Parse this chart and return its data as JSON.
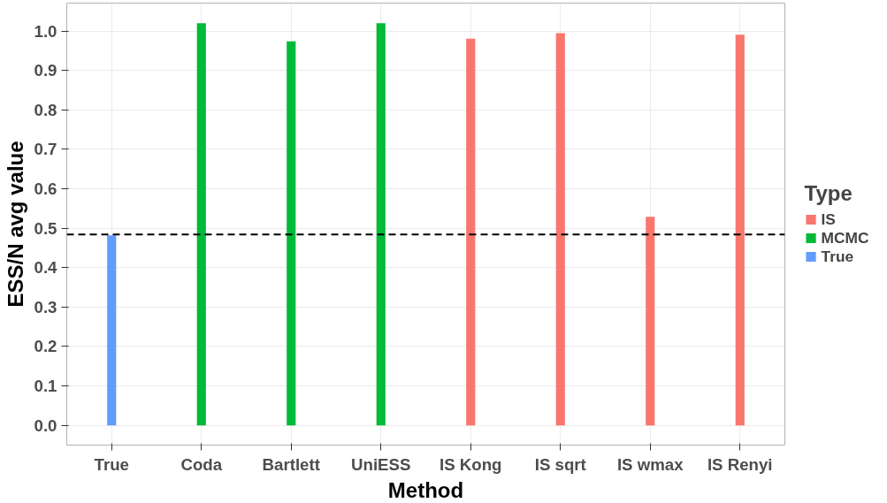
{
  "chart_data": {
    "type": "bar",
    "xlabel": "Method",
    "ylabel": "ESS/N avg value",
    "legend_title": "Type",
    "categories": [
      "True",
      "Coda",
      "Bartlett",
      "UniESS",
      "IS Kong",
      "IS sqrt",
      "IS wmax",
      "IS Renyi"
    ],
    "series": [
      {
        "name": "IS",
        "color": "#f8766d",
        "values": [
          null,
          null,
          null,
          null,
          0.981,
          0.995,
          0.529,
          0.991
        ]
      },
      {
        "name": "MCMC",
        "color": "#00ba38",
        "values": [
          null,
          1.02,
          0.974,
          1.02,
          null,
          null,
          null,
          null
        ]
      },
      {
        "name": "True",
        "color": "#619cff",
        "values": [
          0.482,
          null,
          null,
          null,
          null,
          null,
          null,
          null
        ]
      }
    ],
    "ylim": [
      -0.05,
      1.071
    ],
    "yticks": [
      {
        "value": 0,
        "label": "0.0"
      },
      0.1,
      0.2,
      0.3,
      0.4,
      0.5,
      0.6,
      0.7,
      0.8,
      0.9,
      {
        "value": 1,
        "label": "1.0"
      }
    ],
    "ref_lines": [
      {
        "axis": "y",
        "value": 0.484,
        "color": "#000000",
        "line_style": "dashed"
      }
    ],
    "grid": true,
    "legend": "right"
  }
}
